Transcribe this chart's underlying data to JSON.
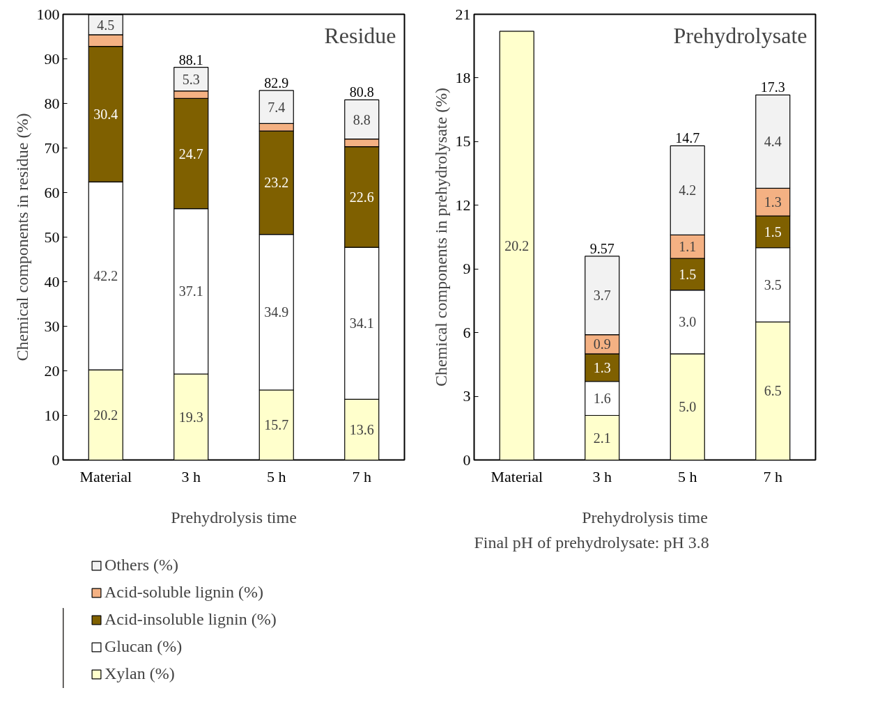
{
  "chart_data": [
    {
      "type": "bar",
      "stacked": true,
      "title": "Residue",
      "xlabel": "Prehydrolysis time",
      "ylabel": "Chemical components in residue (%)",
      "categories": [
        "Material",
        "3 h",
        "5 h",
        "7 h"
      ],
      "ylim": [
        0,
        100
      ],
      "yticks": [
        0,
        10,
        20,
        30,
        40,
        50,
        60,
        70,
        80,
        90,
        100
      ],
      "grid": false,
      "legend": "bottom",
      "totals": [
        null,
        "88.1",
        "82.9",
        "80.8"
      ],
      "series": [
        {
          "name": "Xylan (%)",
          "color": "#ffffcc",
          "values": [
            20.2,
            19.3,
            15.7,
            13.6
          ],
          "value_labels": [
            "20.2",
            "19.3",
            "15.7",
            "13.6"
          ]
        },
        {
          "name": "Glucan (%)",
          "color": "#ffffff",
          "values": [
            42.2,
            37.1,
            34.9,
            34.1
          ],
          "value_labels": [
            "42.2",
            "37.1",
            "34.9",
            "34.1"
          ]
        },
        {
          "name": "Acid-insoluble lignin (%)",
          "color": "#7f6000",
          "values": [
            30.4,
            24.7,
            23.2,
            22.6
          ],
          "value_labels": [
            "30.4",
            "24.7",
            "23.2",
            "22.6"
          ]
        },
        {
          "name": "Acid-soluble lignin (%)",
          "color": "#f4b183",
          "values": [
            2.6,
            1.7,
            1.7,
            1.7
          ],
          "value_labels": [
            null,
            null,
            null,
            null
          ]
        },
        {
          "name": "Others (%)",
          "color": "#f2f2f2",
          "values": [
            4.5,
            5.3,
            7.4,
            8.8
          ],
          "value_labels": [
            "4.5",
            "5.3",
            "7.4",
            "8.8"
          ]
        }
      ]
    },
    {
      "type": "bar",
      "stacked": true,
      "title": "Prehydrolysate",
      "xlabel": "Prehydrolysis time",
      "ylabel": "Chemical components in prehydrolysate (%)",
      "categories": [
        "Material",
        "3 h",
        "5 h",
        "7 h"
      ],
      "ylim": [
        0,
        21
      ],
      "yticks": [
        0,
        3,
        6,
        9,
        12,
        15,
        18,
        21
      ],
      "grid": false,
      "legend": false,
      "totals": [
        null,
        "9.57",
        "14.7",
        "17.3"
      ],
      "annotations": [
        "Final pH of prehydrolysate: pH 3.8"
      ],
      "series": [
        {
          "color": "#ffffcc",
          "values": [
            20.2,
            2.1,
            5.0,
            6.5
          ],
          "value_labels": [
            "20.2",
            "2.1",
            "5.0",
            "6.5"
          ]
        },
        {
          "color": "#ffffff",
          "values": [
            null,
            1.6,
            3.0,
            3.5
          ],
          "value_labels": [
            null,
            "1.6",
            "3.0",
            "3.5"
          ]
        },
        {
          "color": "#7f6000",
          "values": [
            null,
            1.3,
            1.5,
            1.5
          ],
          "value_labels": [
            null,
            "1.3",
            "1.5",
            "1.5"
          ]
        },
        {
          "color": "#f4b183",
          "values": [
            null,
            0.9,
            1.1,
            1.3
          ],
          "value_labels": [
            null,
            "0.9",
            "1.1",
            "1.3"
          ]
        },
        {
          "color": "#f2f2f2",
          "values": [
            null,
            3.7,
            4.2,
            4.4
          ],
          "value_labels": [
            null,
            "3.7",
            "4.2",
            "4.4"
          ]
        }
      ]
    }
  ]
}
